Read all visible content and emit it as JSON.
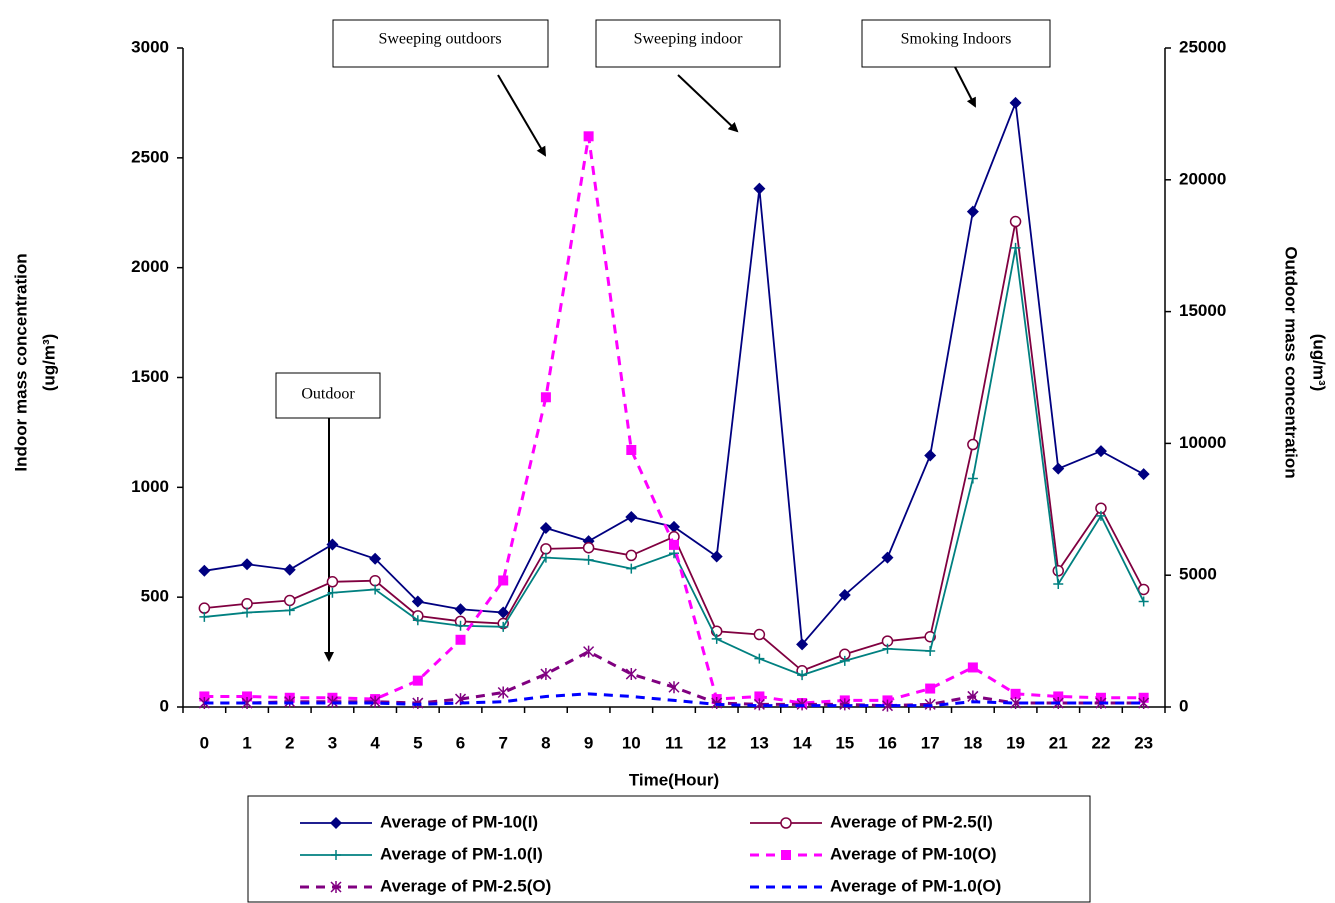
{
  "chart_data": {
    "type": "line",
    "xlabel": "Time(Hour)",
    "ylabel": [
      "Indoor mass concentration",
      "(ug/m³)"
    ],
    "y2label": [
      "Outdoor mass concentration",
      "(ug/m³)"
    ],
    "categories": [
      "0",
      "1",
      "2",
      "3",
      "4",
      "5",
      "6",
      "7",
      "8",
      "9",
      "10",
      "11",
      "12",
      "13",
      "14",
      "15",
      "16",
      "17",
      "18",
      "19",
      "21",
      "22",
      "23"
    ],
    "ylim": [
      0,
      3000
    ],
    "yticks": [
      0,
      500,
      1000,
      1500,
      2000,
      2500,
      3000
    ],
    "y2lim": [
      0,
      25000
    ],
    "y2ticks": [
      0,
      5000,
      10000,
      15000,
      20000,
      25000
    ],
    "legend": "bottom",
    "series": [
      {
        "name": "Average of PM-10(I)",
        "color": "#000080",
        "style": "solid",
        "marker": "diamond",
        "values": [
          620,
          650,
          625,
          740,
          675,
          480,
          445,
          430,
          815,
          755,
          865,
          820,
          685,
          2360,
          285,
          510,
          680,
          1145,
          2255,
          2750,
          1085,
          1165,
          1060
        ]
      },
      {
        "name": "Average of PM-2.5(I)",
        "color": "#800040",
        "style": "solid",
        "marker": "circle",
        "values": [
          450,
          470,
          485,
          570,
          575,
          415,
          390,
          380,
          720,
          725,
          690,
          775,
          345,
          330,
          165,
          240,
          300,
          320,
          1195,
          2210,
          620,
          905,
          535
        ]
      },
      {
        "name": "Average of PM-1.0(I)",
        "color": "#008080",
        "style": "solid",
        "marker": "plus",
        "values": [
          410,
          430,
          440,
          520,
          535,
          395,
          370,
          365,
          680,
          670,
          630,
          700,
          310,
          220,
          145,
          210,
          265,
          255,
          1040,
          2090,
          560,
          870,
          480
        ]
      },
      {
        "name": "Average of PM-10(O)",
        "color": "#FF00FF",
        "style": "dashed",
        "marker": "square",
        "axis": "y2",
        "values": [
          400,
          400,
          350,
          350,
          300,
          1000,
          2550,
          4800,
          11750,
          21650,
          9750,
          6150,
          300,
          400,
          150,
          250,
          250,
          700,
          1500,
          500,
          400,
          350,
          350
        ]
      },
      {
        "name": "Average of PM-2.5(O)",
        "color": "#800080",
        "style": "dashed",
        "marker": "star",
        "axis": "y2",
        "values": [
          150,
          150,
          200,
          200,
          200,
          150,
          300,
          550,
          1250,
          2100,
          1250,
          750,
          150,
          100,
          100,
          100,
          50,
          100,
          400,
          150,
          150,
          150,
          150
        ]
      },
      {
        "name": "Average of PM-1.0(O)",
        "color": "#0000FF",
        "style": "dashed",
        "marker": "none",
        "axis": "y2",
        "values": [
          150,
          150,
          150,
          150,
          150,
          100,
          150,
          200,
          400,
          500,
          400,
          250,
          100,
          50,
          50,
          50,
          50,
          50,
          200,
          150,
          150,
          150,
          150
        ]
      }
    ],
    "annotations": [
      "Sweeping outdoors",
      "Sweeping indoor",
      "Smoking Indoors",
      "Outdoor"
    ]
  }
}
